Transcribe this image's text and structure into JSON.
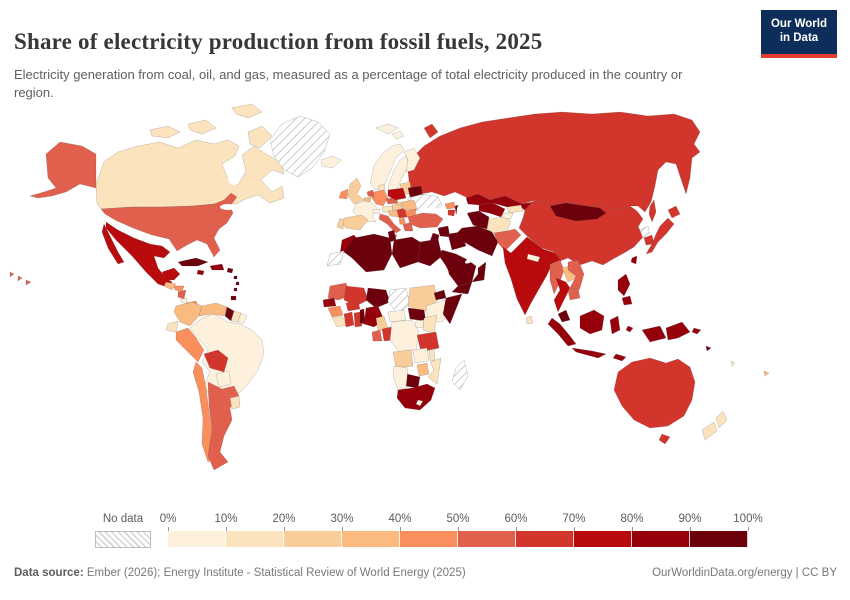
{
  "header": {
    "title": "Share of electricity production from fossil fuels, 2025",
    "subtitle": "Electricity generation from coal, oil, and gas, measured as a percentage of total electricity produced in the country or region."
  },
  "logo": {
    "line1": "Our World",
    "line2": "in Data",
    "bg_color": "#0d2e5a",
    "accent_color": "#e23d2e"
  },
  "legend": {
    "no_data_label": "No data",
    "tick_labels": [
      "0%",
      "10%",
      "20%",
      "30%",
      "40%",
      "50%",
      "60%",
      "70%",
      "80%",
      "90%",
      "100%"
    ]
  },
  "footer": {
    "source_label": "Data source:",
    "source_text": " Ember (2026); Energy Institute - Statistical Review of World Energy (2025)",
    "credit_text": "OurWorldinData.org/energy | CC BY"
  },
  "chart_data": {
    "type": "choropleth",
    "title": "Share of electricity production from fossil fuels, 2025",
    "unit": "%",
    "legend_position": "bottom",
    "color_scale": {
      "min": 0,
      "max": 100,
      "bucket_size": 10,
      "colors": [
        "#FDF1DE",
        "#FBE3BE",
        "#F9CD99",
        "#FABA80",
        "#FB8E5D",
        "#E1604D",
        "#D2352B",
        "#B90B0E",
        "#95000A",
        "#6D000D"
      ],
      "no_data_pattern": "diagonal-hatch"
    },
    "no_data_regions": [
      "Greenland",
      "Ukraine",
      "Chad",
      "Western Sahara",
      "Madagascar",
      "North Korea"
    ],
    "countries": {
      "canada": {
        "name": "Canada",
        "value": 18
      },
      "usa": {
        "name": "United States",
        "value": 58
      },
      "greenland": {
        "name": "Greenland",
        "value": null
      },
      "mexico": {
        "name": "Mexico",
        "value": 78
      },
      "guatemala": {
        "name": "Guatemala",
        "value": 38
      },
      "honduras": {
        "name": "Honduras",
        "value": 48
      },
      "nicaragua": {
        "name": "Nicaragua",
        "value": 52
      },
      "costa-rica": {
        "name": "Costa Rica",
        "value": 2
      },
      "panama": {
        "name": "Panama",
        "value": 42
      },
      "cuba": {
        "name": "Cuba",
        "value": 92
      },
      "jamaica": {
        "name": "Jamaica",
        "value": 87
      },
      "dominican-republic": {
        "name": "Dominican Republic",
        "value": 85
      },
      "puerto-rico": {
        "name": "Puerto Rico",
        "value": 92
      },
      "lesser-antilles": {
        "name": "Lesser Antilles",
        "value": 90
      },
      "trinidad-and-tobago": {
        "name": "Trinidad and Tobago",
        "value": 99
      },
      "colombia": {
        "name": "Colombia",
        "value": 32
      },
      "venezuela": {
        "name": "Venezuela",
        "value": 33
      },
      "guyana": {
        "name": "Guyana",
        "value": 92
      },
      "suriname": {
        "name": "Suriname",
        "value": 15
      },
      "french-guiana": {
        "name": "French Guiana",
        "value": 8
      },
      "ecuador": {
        "name": "Ecuador",
        "value": 10
      },
      "peru": {
        "name": "Peru",
        "value": 45
      },
      "brazil": {
        "name": "Brazil",
        "value": 9
      },
      "bolivia": {
        "name": "Bolivia",
        "value": 65
      },
      "paraguay": {
        "name": "Paraguay",
        "value": 0
      },
      "chile": {
        "name": "Chile",
        "value": 42
      },
      "argentina": {
        "name": "Argentina",
        "value": 58
      },
      "uruguay": {
        "name": "Uruguay",
        "value": 12
      },
      "iceland": {
        "name": "Iceland",
        "value": 0
      },
      "norway": {
        "name": "Norway",
        "value": 1
      },
      "sweden": {
        "name": "Sweden",
        "value": 2
      },
      "finland": {
        "name": "Finland",
        "value": 7
      },
      "denmark": {
        "name": "Denmark",
        "value": 18
      },
      "uk": {
        "name": "United Kingdom",
        "value": 28
      },
      "ireland": {
        "name": "Ireland",
        "value": 45
      },
      "france": {
        "name": "France",
        "value": 8
      },
      "spain": {
        "name": "Spain",
        "value": 23
      },
      "portugal": {
        "name": "Portugal",
        "value": 27
      },
      "germany": {
        "name": "Germany",
        "value": 44
      },
      "netherlands": {
        "name": "Netherlands",
        "value": 52
      },
      "belgium": {
        "name": "Belgium",
        "value": 35
      },
      "switzerland": {
        "name": "Switzerland",
        "value": 2
      },
      "austria": {
        "name": "Austria",
        "value": 15
      },
      "czechia": {
        "name": "Czechia",
        "value": 55
      },
      "slovakia": {
        "name": "Slovakia",
        "value": 20
      },
      "poland": {
        "name": "Poland",
        "value": 70
      },
      "italy": {
        "name": "Italy",
        "value": 55
      },
      "hungary": {
        "name": "Hungary",
        "value": 28
      },
      "croatia": {
        "name": "Croatia",
        "value": 38
      },
      "serbia": {
        "name": "Serbia",
        "value": 60
      },
      "albania": {
        "name": "Albania",
        "value": 45
      },
      "greece": {
        "name": "Greece",
        "value": 55
      },
      "romania": {
        "name": "Romania",
        "value": 33
      },
      "bulgaria": {
        "name": "Bulgaria",
        "value": 42
      },
      "baltic-states": {
        "name": "Baltic states",
        "value": 25
      },
      "belarus": {
        "name": "Belarus",
        "value": 95
      },
      "ukraine": {
        "name": "Ukraine",
        "value": null
      },
      "russia": {
        "name": "Russia",
        "value": 63
      },
      "georgia": {
        "name": "Georgia",
        "value": 40
      },
      "armenia": {
        "name": "Armenia",
        "value": 62
      },
      "azerbaijan": {
        "name": "Azerbaijan",
        "value": 93
      },
      "turkey": {
        "name": "Turkey",
        "value": 56
      },
      "syria": {
        "name": "Syria",
        "value": 93
      },
      "israel": {
        "name": "Israel",
        "value": 97
      },
      "iraq": {
        "name": "Iraq",
        "value": 99
      },
      "iran": {
        "name": "Iran",
        "value": 95
      },
      "saudi-arabia": {
        "name": "Saudi Arabia",
        "value": 100
      },
      "yemen": {
        "name": "Yemen",
        "value": 100
      },
      "oman": {
        "name": "Oman",
        "value": 97
      },
      "kazakhstan": {
        "name": "Kazakhstan",
        "value": 85
      },
      "turkmenistan": {
        "name": "Turkmenistan",
        "value": 100
      },
      "uzbekistan": {
        "name": "Uzbekistan",
        "value": 85
      },
      "kyrgyzstan": {
        "name": "Kyrgyzstan",
        "value": 10
      },
      "tajikistan": {
        "name": "Tajikistan",
        "value": 7
      },
      "afghanistan": {
        "name": "Afghanistan",
        "value": 18
      },
      "pakistan": {
        "name": "Pakistan",
        "value": 55
      },
      "india": {
        "name": "India",
        "value": 76
      },
      "nepal": {
        "name": "Nepal",
        "value": 2
      },
      "bangladesh": {
        "name": "Bangladesh",
        "value": 98
      },
      "sri-lanka": {
        "name": "Sri Lanka",
        "value": 15
      },
      "china": {
        "name": "China",
        "value": 62
      },
      "mongolia": {
        "name": "Mongolia",
        "value": 92
      },
      "north-korea": {
        "name": "North Korea",
        "value": null
      },
      "south-korea": {
        "name": "South Korea",
        "value": 62
      },
      "japan": {
        "name": "Japan",
        "value": 65
      },
      "taiwan": {
        "name": "Taiwan",
        "value": 88
      },
      "myanmar": {
        "name": "Myanmar",
        "value": 55
      },
      "laos": {
        "name": "Laos",
        "value": 30
      },
      "thailand": {
        "name": "Thailand",
        "value": 78
      },
      "vietnam": {
        "name": "Vietnam",
        "value": 58
      },
      "cambodia": {
        "name": "Cambodia",
        "value": 55
      },
      "malaysia": {
        "name": "Malaysia",
        "value": 92
      },
      "indonesia": {
        "name": "Indonesia",
        "value": 83
      },
      "philippines": {
        "name": "Philippines",
        "value": 82
      },
      "papua-new-guinea": {
        "name": "Papua New Guinea",
        "value": 82
      },
      "solomon-islands": {
        "name": "Solomon Islands",
        "value": 90
      },
      "vanuatu": {
        "name": "Vanuatu",
        "value": 15
      },
      "fiji": {
        "name": "Fiji",
        "value": 30
      },
      "australia": {
        "name": "Australia",
        "value": 63
      },
      "new-zealand": {
        "name": "New Zealand",
        "value": 13
      },
      "morocco": {
        "name": "Morocco",
        "value": 88
      },
      "western-sahara": {
        "name": "Western Sahara",
        "value": null
      },
      "algeria": {
        "name": "Algeria",
        "value": 99
      },
      "tunisia": {
        "name": "Tunisia",
        "value": 97
      },
      "libya": {
        "name": "Libya",
        "value": 100
      },
      "egypt": {
        "name": "Egypt",
        "value": 91
      },
      "mauritania": {
        "name": "Mauritania",
        "value": 55
      },
      "senegal": {
        "name": "Senegal",
        "value": 88
      },
      "guinea": {
        "name": "Guinea",
        "value": 45
      },
      "sierra-leone": {
        "name": "Sierra Leone",
        "value": 12
      },
      "ivory-coast": {
        "name": "Côte d'Ivoire",
        "value": 65
      },
      "ghana": {
        "name": "Ghana",
        "value": 65
      },
      "burkina-faso": {
        "name": "Burkina Faso",
        "value": 65
      },
      "benin": {
        "name": "Benin",
        "value": 90
      },
      "mali": {
        "name": "Mali",
        "value": 62
      },
      "niger": {
        "name": "Niger",
        "value": 90
      },
      "nigeria": {
        "name": "Nigeria",
        "value": 84
      },
      "chad": {
        "name": "Chad",
        "value": null
      },
      "sudan": {
        "name": "Sudan",
        "value": 25
      },
      "eritrea": {
        "name": "Eritrea",
        "value": 95
      },
      "south-sudan": {
        "name": "South Sudan",
        "value": 92
      },
      "ethiopia": {
        "name": "Ethiopia",
        "value": 2
      },
      "somalia": {
        "name": "Somalia",
        "value": 92
      },
      "cameroon": {
        "name": "Cameroon",
        "value": 25
      },
      "central-african-republic": {
        "name": "Central African Republic",
        "value": 2
      },
      "uganda": {
        "name": "Uganda",
        "value": 5
      },
      "kenya": {
        "name": "Kenya",
        "value": 12
      },
      "gabon": {
        "name": "Gabon",
        "value": 52
      },
      "congo": {
        "name": "Congo",
        "value": 62
      },
      "drc": {
        "name": "Democratic Republic of Congo",
        "value": 2
      },
      "tanzania": {
        "name": "Tanzania",
        "value": 62
      },
      "angola": {
        "name": "Angola",
        "value": 25
      },
      "zambia": {
        "name": "Zambia",
        "value": 8
      },
      "malawi": {
        "name": "Malawi",
        "value": 15
      },
      "mozambique": {
        "name": "Mozambique",
        "value": 12
      },
      "zimbabwe": {
        "name": "Zimbabwe",
        "value": 38
      },
      "botswana": {
        "name": "Botswana",
        "value": 99
      },
      "namibia": {
        "name": "Namibia",
        "value": 4
      },
      "south-africa": {
        "name": "South Africa",
        "value": 85
      },
      "lesotho": {
        "name": "Lesotho",
        "value": 0
      },
      "madagascar": {
        "name": "Madagascar",
        "value": null
      }
    }
  }
}
